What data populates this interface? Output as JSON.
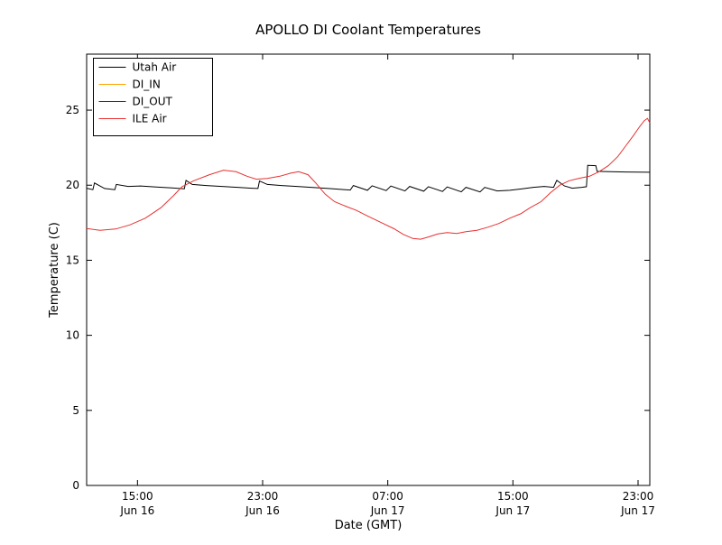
{
  "chart_data": {
    "type": "line",
    "title": "APOLLO DI Coolant Temperatures",
    "xlabel": "Date (GMT)",
    "ylabel": "Temperature (C)",
    "x_unit": "hours since Jun 16 12:00 GMT",
    "xlim": [
      -0.25,
      35.75
    ],
    "ylim": [
      0,
      28.73
    ],
    "grid": false,
    "background": "#ffffff",
    "axis_color": "#000000",
    "yticks": [
      0,
      5,
      10,
      15,
      20,
      25
    ],
    "xticks": [
      {
        "t": 3,
        "time": "15:00",
        "date": "Jun 16"
      },
      {
        "t": 11,
        "time": "23:00",
        "date": "Jun 16"
      },
      {
        "t": 19,
        "time": "07:00",
        "date": "Jun 17"
      },
      {
        "t": 27,
        "time": "15:00",
        "date": "Jun 17"
      },
      {
        "t": 35,
        "time": "23:00",
        "date": "Jun 17"
      }
    ],
    "legend": {
      "position": "upper left",
      "entries": [
        "Utah Air",
        "DI_IN",
        "DI_OUT",
        "ILE Air"
      ]
    },
    "series": [
      {
        "name": "Utah Air",
        "color": "#000000",
        "points": [
          [
            -0.25,
            19.8
          ],
          [
            0.15,
            19.7
          ],
          [
            0.25,
            20.15
          ],
          [
            0.9,
            19.78
          ],
          [
            1.55,
            19.7
          ],
          [
            1.65,
            20.05
          ],
          [
            2.4,
            19.92
          ],
          [
            3.2,
            19.95
          ],
          [
            4.2,
            19.88
          ],
          [
            5.2,
            19.82
          ],
          [
            6.0,
            19.76
          ],
          [
            6.1,
            20.32
          ],
          [
            6.5,
            20.05
          ],
          [
            7.4,
            19.98
          ],
          [
            8.4,
            19.92
          ],
          [
            9.4,
            19.86
          ],
          [
            10.3,
            19.8
          ],
          [
            10.7,
            19.78
          ],
          [
            10.8,
            20.28
          ],
          [
            11.3,
            20.05
          ],
          [
            12.2,
            19.98
          ],
          [
            13.2,
            19.92
          ],
          [
            14.2,
            19.85
          ],
          [
            15.2,
            19.78
          ],
          [
            16.0,
            19.72
          ],
          [
            16.6,
            19.68
          ],
          [
            16.8,
            19.98
          ],
          [
            17.7,
            19.66
          ],
          [
            18.0,
            19.96
          ],
          [
            18.9,
            19.64
          ],
          [
            19.2,
            19.94
          ],
          [
            20.1,
            19.62
          ],
          [
            20.4,
            19.92
          ],
          [
            21.3,
            19.6
          ],
          [
            21.6,
            19.9
          ],
          [
            22.5,
            19.58
          ],
          [
            22.8,
            19.88
          ],
          [
            23.7,
            19.56
          ],
          [
            24.0,
            19.86
          ],
          [
            24.9,
            19.55
          ],
          [
            25.2,
            19.85
          ],
          [
            26.0,
            19.62
          ],
          [
            26.8,
            19.66
          ],
          [
            27.6,
            19.76
          ],
          [
            28.3,
            19.86
          ],
          [
            29.0,
            19.92
          ],
          [
            29.6,
            19.86
          ],
          [
            29.8,
            20.32
          ],
          [
            30.3,
            19.95
          ],
          [
            30.8,
            19.8
          ],
          [
            31.4,
            19.86
          ],
          [
            31.7,
            19.9
          ],
          [
            31.78,
            21.32
          ],
          [
            32.3,
            21.3
          ],
          [
            32.38,
            20.92
          ],
          [
            33.2,
            20.9
          ],
          [
            34.2,
            20.88
          ],
          [
            35.75,
            20.86
          ]
        ]
      },
      {
        "name": "DI_IN",
        "color": "#ffa500",
        "points": []
      },
      {
        "name": "DI_OUT",
        "color": "#800080",
        "points": []
      },
      {
        "name": "ILE Air",
        "color": "#e83030",
        "points": [
          [
            -0.25,
            17.12
          ],
          [
            0.6,
            17.0
          ],
          [
            1.6,
            17.08
          ],
          [
            2.5,
            17.35
          ],
          [
            3.5,
            17.8
          ],
          [
            4.5,
            18.5
          ],
          [
            5.3,
            19.3
          ],
          [
            5.85,
            19.9
          ],
          [
            6.6,
            20.3
          ],
          [
            7.6,
            20.7
          ],
          [
            8.5,
            21.0
          ],
          [
            9.3,
            20.9
          ],
          [
            10.0,
            20.6
          ],
          [
            10.6,
            20.4
          ],
          [
            11.3,
            20.45
          ],
          [
            12.1,
            20.6
          ],
          [
            12.8,
            20.8
          ],
          [
            13.3,
            20.9
          ],
          [
            13.9,
            20.7
          ],
          [
            14.4,
            20.15
          ],
          [
            15.0,
            19.4
          ],
          [
            15.6,
            18.9
          ],
          [
            16.3,
            18.6
          ],
          [
            17.0,
            18.32
          ],
          [
            17.8,
            17.9
          ],
          [
            18.6,
            17.5
          ],
          [
            19.4,
            17.1
          ],
          [
            20.0,
            16.72
          ],
          [
            20.6,
            16.45
          ],
          [
            21.1,
            16.4
          ],
          [
            21.6,
            16.55
          ],
          [
            22.2,
            16.75
          ],
          [
            22.8,
            16.85
          ],
          [
            23.4,
            16.78
          ],
          [
            24.0,
            16.9
          ],
          [
            24.7,
            17.0
          ],
          [
            25.4,
            17.2
          ],
          [
            26.1,
            17.45
          ],
          [
            26.8,
            17.8
          ],
          [
            27.5,
            18.1
          ],
          [
            28.1,
            18.5
          ],
          [
            28.8,
            18.9
          ],
          [
            29.4,
            19.5
          ],
          [
            30.0,
            20.0
          ],
          [
            30.6,
            20.3
          ],
          [
            31.2,
            20.45
          ],
          [
            31.9,
            20.6
          ],
          [
            32.5,
            20.9
          ],
          [
            33.1,
            21.3
          ],
          [
            33.7,
            21.9
          ],
          [
            34.2,
            22.6
          ],
          [
            34.7,
            23.3
          ],
          [
            35.1,
            23.9
          ],
          [
            35.4,
            24.3
          ],
          [
            35.6,
            24.45
          ],
          [
            35.75,
            24.15
          ]
        ]
      }
    ]
  }
}
